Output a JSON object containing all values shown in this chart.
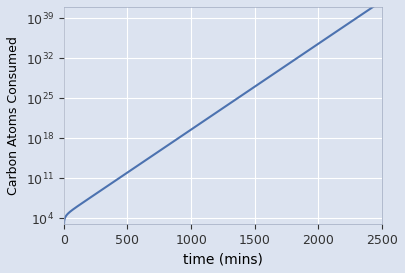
{
  "title": "",
  "xlabel": "time (mins)",
  "ylabel": "Carbon Atoms Consumed",
  "line_color": "#4c72b0",
  "background_color": "#dce3f0",
  "grid_color": "#ffffff",
  "xlim": [
    0,
    2500
  ],
  "ylim_log_min": 3,
  "ylim_log_max": 41,
  "x_ticks": [
    0,
    500,
    1000,
    1500,
    2000,
    2500
  ],
  "y_ticks_exp": [
    4,
    11,
    18,
    25,
    32,
    39
  ],
  "t_start": 0,
  "t_end": 2500,
  "n_points": 1000,
  "growth_rate": 0.03466,
  "initial_carbon": 1000
}
